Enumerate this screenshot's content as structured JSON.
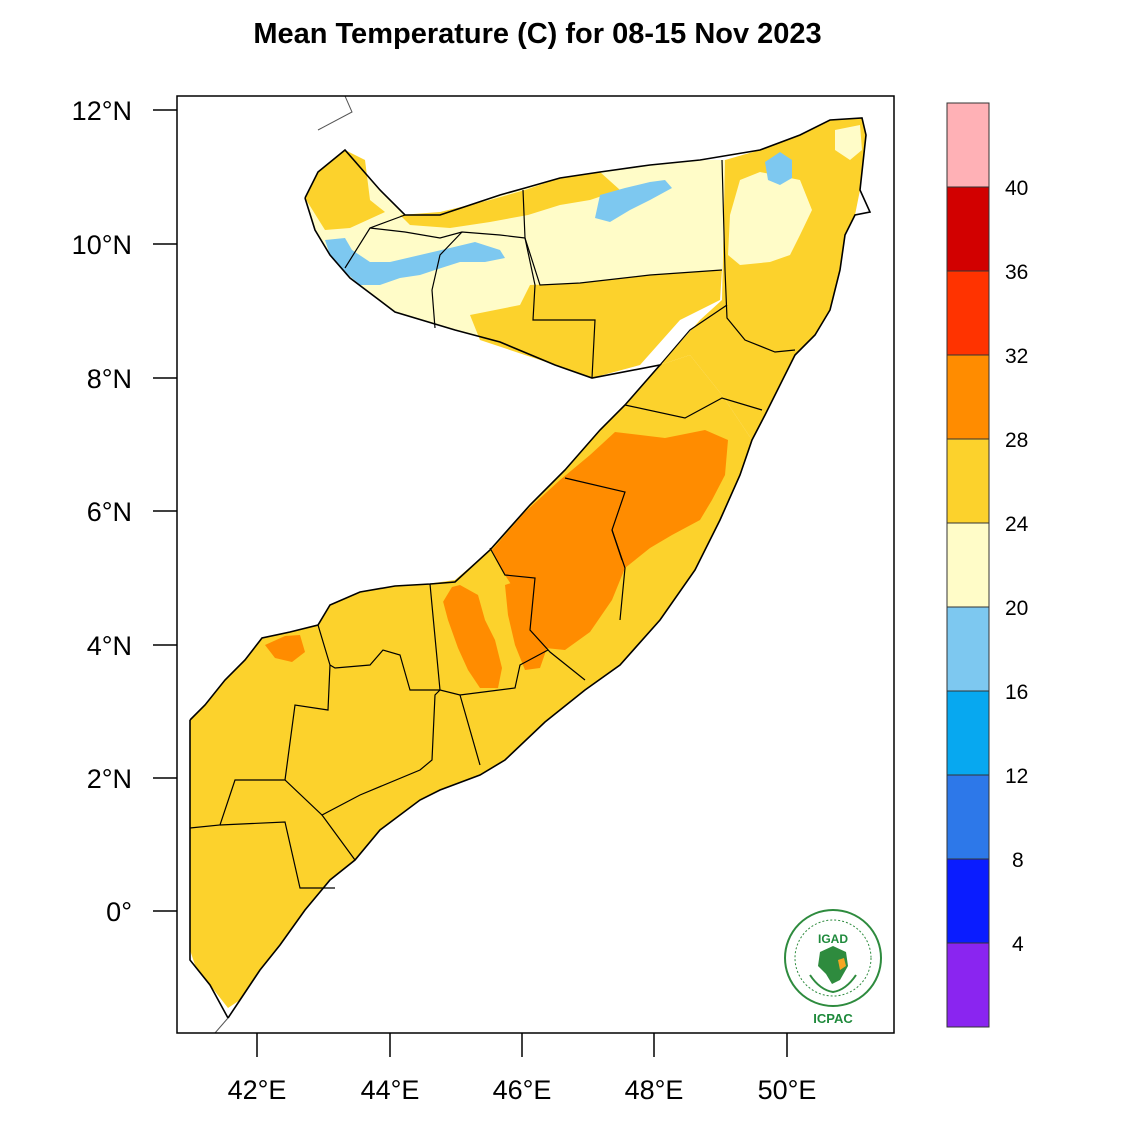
{
  "title": "Mean Temperature (C) for 08-15 Nov 2023",
  "map": {
    "lat_ticks": [
      "12°N",
      "10°N",
      "8°N",
      "6°N",
      "4°N",
      "2°N",
      "0°"
    ],
    "lon_ticks": [
      "42°E",
      "44°E",
      "46°E",
      "48°E",
      "50°E"
    ],
    "lat_range": [
      -1.8,
      12.2
    ],
    "lon_range": [
      40.8,
      51.6
    ]
  },
  "colorbar": {
    "labels": [
      "40",
      "36",
      "32",
      "28",
      "24",
      "20",
      "16",
      "12",
      "8",
      "4"
    ],
    "colors": [
      "#ffb1b6",
      "#d20000",
      "#ff3300",
      "#ff8c00",
      "#fcd22c",
      "#fffcc8",
      "#7dc8f0",
      "#07a8f0",
      "#2d78e9",
      "#0a1cff",
      "#8a25f0"
    ]
  },
  "logo": {
    "top_text": "IGAD",
    "bottom_text": "ICPAC"
  }
}
